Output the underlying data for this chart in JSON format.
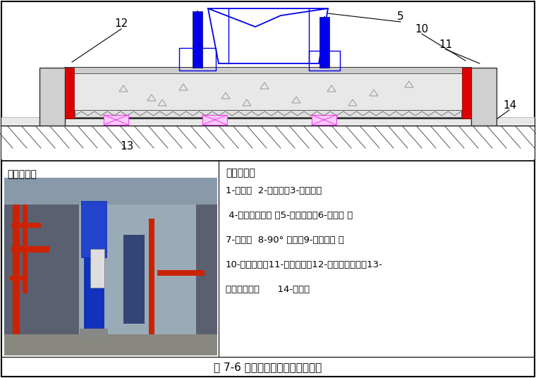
{
  "title": "图 7-6 立式水泵与管路连接示意图",
  "bg_color": "#ffffff",
  "red_color": "#dd0000",
  "blue_color": "#0000ee",
  "blue_light": "#6666ff",
  "pink_color": "#ee44ee",
  "pink_fill": "#ffccff",
  "symbol_title": "符号说明：",
  "symbol_lines": [
    "1-闸阀；  2-除污器；3-软接头；",
    " 4-压力表连旋塞 ；5-立式水泵；6-止回阀 ；",
    "7-支架；  8-90° 弯头；9-弹性吊架 ；",
    "10-浮动底座；11-隔离夹板；12-外部等级夹板；13-",
    "隔振橡胶垫；      14-地面；"
  ],
  "shishi_label": "实施案例："
}
